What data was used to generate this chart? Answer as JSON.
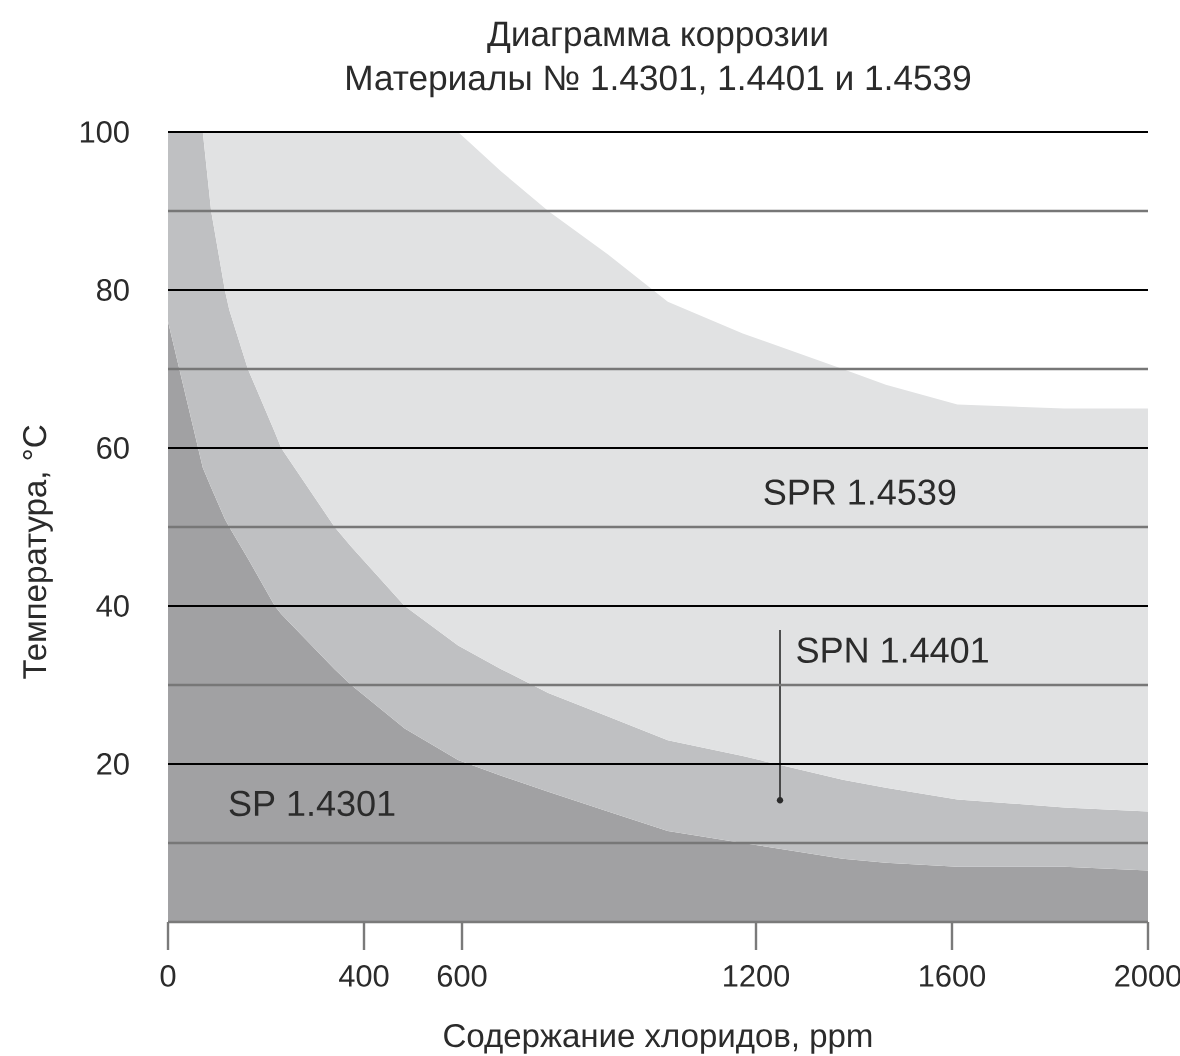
{
  "chart_data": {
    "type": "area",
    "title": "Диаграмма коррозии",
    "subtitle": "Материалы № 1.4301, 1.4401 и 1.4539",
    "xlabel": "Содержание хлоридов, ppm",
    "ylabel": "Температура, °C",
    "xlim": [
      0,
      2000
    ],
    "ylim": [
      0,
      100
    ],
    "xticks": [
      0,
      400,
      600,
      1200,
      1600,
      2000
    ],
    "yticks": [
      {
        "value": 10,
        "label": null
      },
      20,
      {
        "value": 30,
        "label": null
      },
      40,
      {
        "value": 50,
        "label": null
      },
      60,
      {
        "value": 70,
        "label": null
      },
      80,
      {
        "value": 90,
        "label": null
      },
      100
    ],
    "grid": "y",
    "stacked": true,
    "x": [
      0,
      71,
      88,
      116,
      125,
      163,
      218,
      231,
      340,
      374,
      483,
      592,
      680,
      776,
      898,
      1020,
      1173,
      1377,
      1465,
      1611,
      1829,
      2000
    ],
    "series": [
      {
        "name": "SP 1.4301",
        "color": "#a1a1a3",
        "values": [
          76,
          57.5,
          55,
          51,
          50,
          46,
          40,
          39,
          32,
          30,
          24.5,
          20.5,
          18.5,
          16.5,
          14,
          11.5,
          10,
          8,
          7.5,
          7,
          7,
          6.5
        ]
      },
      {
        "name": "SPN 1.4401",
        "color": "#bfc0c2",
        "values": [
          24,
          42.5,
          35,
          29,
          27.5,
          24,
          22,
          21,
          18,
          17.5,
          15.5,
          14.5,
          13.5,
          12.5,
          12,
          11.5,
          11,
          10,
          9.5,
          8.5,
          7.5,
          7.5
        ]
      },
      {
        "name": "SPR 1.4539",
        "color": "#e1e2e3",
        "values": [
          0,
          0,
          10,
          20,
          22.5,
          30,
          38,
          40,
          50,
          52.5,
          60,
          65,
          63,
          61,
          58.5,
          55.5,
          53.5,
          52,
          51,
          50,
          50.5,
          51
        ]
      }
    ]
  }
}
